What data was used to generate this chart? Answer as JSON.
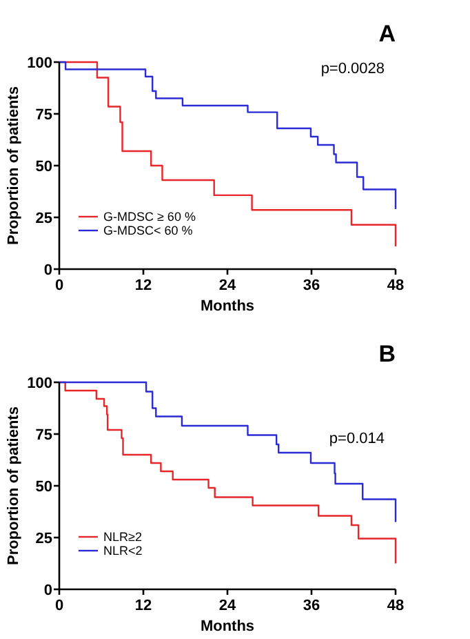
{
  "chart_data": [
    {
      "type": "step",
      "title": "A",
      "xlabel": "Months",
      "ylabel": "Proportion of patients",
      "annotations": [
        "p=0.0028"
      ],
      "xlim": [
        0,
        48
      ],
      "xticks": [
        0,
        12,
        24,
        36,
        48
      ],
      "ylim": [
        0,
        100
      ],
      "yticks": [
        0,
        25,
        50,
        75,
        100
      ],
      "legend": "bottom left",
      "line_style": "solid",
      "series": [
        {
          "name": "G-MDSC ≥ 60 %",
          "color": "#e8262a",
          "x": [
            0,
            5.4,
            7.0,
            8.7,
            9.0,
            13.1,
            14.7,
            22.1,
            27.5,
            41.7,
            48,
            48
          ],
          "values": [
            100,
            92.5,
            78.5,
            71,
            57,
            50,
            43,
            35.7,
            28.6,
            21.4,
            21.4,
            11
          ]
        },
        {
          "name": "G-MDSC< 60 %",
          "color": "#2b2bd6",
          "x": [
            0,
            0.9,
            12.3,
            13.3,
            13.8,
            17.6,
            26.9,
            31.1,
            35.9,
            36.9,
            39.2,
            39.5,
            42.5,
            43.4,
            48,
            48
          ],
          "values": [
            100,
            96.5,
            93,
            86,
            82.5,
            79,
            75.8,
            68,
            64,
            60,
            55.5,
            51.5,
            44.5,
            38.5,
            38.5,
            29
          ]
        }
      ]
    },
    {
      "type": "step",
      "title": "B",
      "xlabel": "Months",
      "ylabel": "Proportion of patients",
      "annotations": [
        "p=0.014"
      ],
      "xlim": [
        0,
        48
      ],
      "xticks": [
        0,
        12,
        24,
        36,
        48
      ],
      "ylim": [
        0,
        100
      ],
      "yticks": [
        0,
        25,
        50,
        75,
        100
      ],
      "legend": "bottom left",
      "line_style": "solid",
      "series": [
        {
          "name": "NLR≥2",
          "color": "#e8262a",
          "x": [
            0,
            0.85,
            5.3,
            6.4,
            6.8,
            6.9,
            8.9,
            9.1,
            13.1,
            14.5,
            16.2,
            21.3,
            22.2,
            27.6,
            37.0,
            41.7,
            42.7,
            48,
            48
          ],
          "values": [
            100,
            96,
            92,
            88.5,
            84.5,
            77,
            73,
            65,
            61,
            57,
            53,
            49,
            44.5,
            40.5,
            35.5,
            31,
            24.5,
            24.5,
            12.5
          ]
        },
        {
          "name": "NLR<2",
          "color": "#2b2bd6",
          "x": [
            0,
            12.4,
            13.3,
            13.8,
            17.5,
            26.9,
            31.0,
            31.3,
            35.9,
            39.3,
            39.4,
            43.3,
            48,
            48
          ],
          "values": [
            100,
            95.5,
            87.5,
            83.5,
            79,
            74.5,
            70,
            66,
            61,
            56,
            51,
            43.5,
            43.5,
            32.5
          ]
        }
      ]
    }
  ]
}
